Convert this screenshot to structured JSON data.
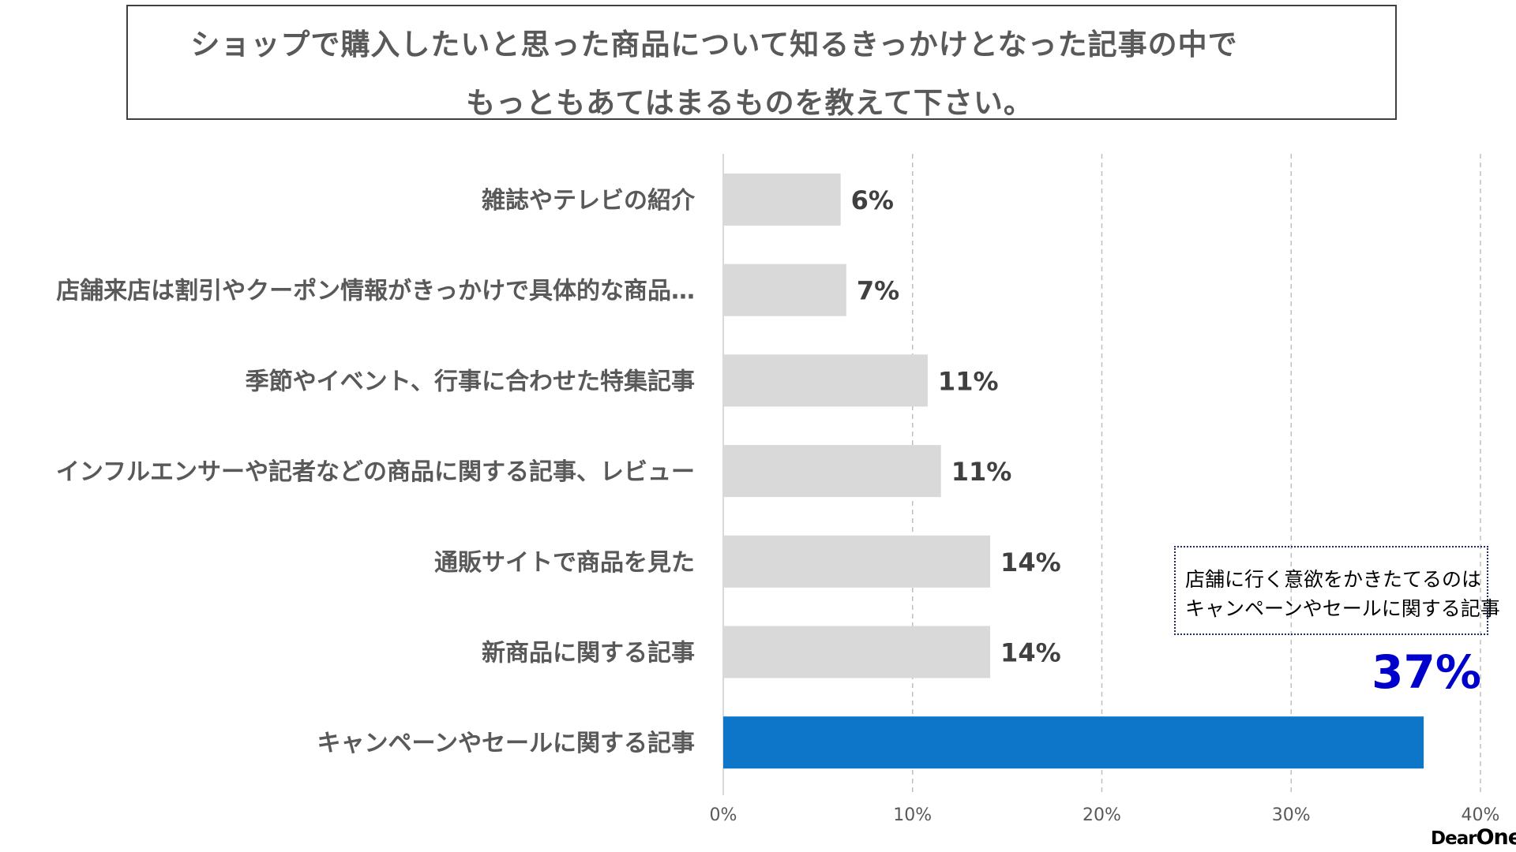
{
  "title": {
    "line1": "ショップで購入したいと思った商品について知るきっかけとなった記事の中で",
    "line2": "もっともあてはまるものを教えて下さい。"
  },
  "chart_data": {
    "type": "bar",
    "orientation": "horizontal",
    "categories": [
      "雑誌やテレビの紹介",
      "店舗来店は割引やクーポン情報がきっかけで具体的な商品…",
      "季節やイベント、行事に合わせた特集記事",
      "インフルエンサーや記者などの商品に関する記事、レビュー",
      "通販サイトで商品を見た",
      "新商品に関する記事",
      "キャンペーンやセールに関する記事"
    ],
    "values": [
      6.2,
      6.5,
      10.8,
      11.5,
      14.1,
      14.1,
      37.0
    ],
    "value_labels": [
      "6%",
      "7%",
      "11%",
      "11%",
      "14%",
      "14%",
      ""
    ],
    "highlight_index": 6,
    "xlim": [
      0,
      40
    ],
    "xticks": [
      0,
      10,
      20,
      30,
      40
    ],
    "xtick_labels": [
      "0%",
      "10%",
      "20%",
      "30%",
      "40%"
    ],
    "grid": true,
    "colors": {
      "bar": "#d9d9d9",
      "highlight": "#0e76c9",
      "grid": "#bfbfbf",
      "axis": "#d9d9d9"
    }
  },
  "callout": {
    "line1": "店舗に行く意欲をかきたてるのは",
    "line2": "キャンペーンやセールに関する記事",
    "value": "37%"
  },
  "logo": {
    "part1": "Dear",
    "part2": "One"
  }
}
